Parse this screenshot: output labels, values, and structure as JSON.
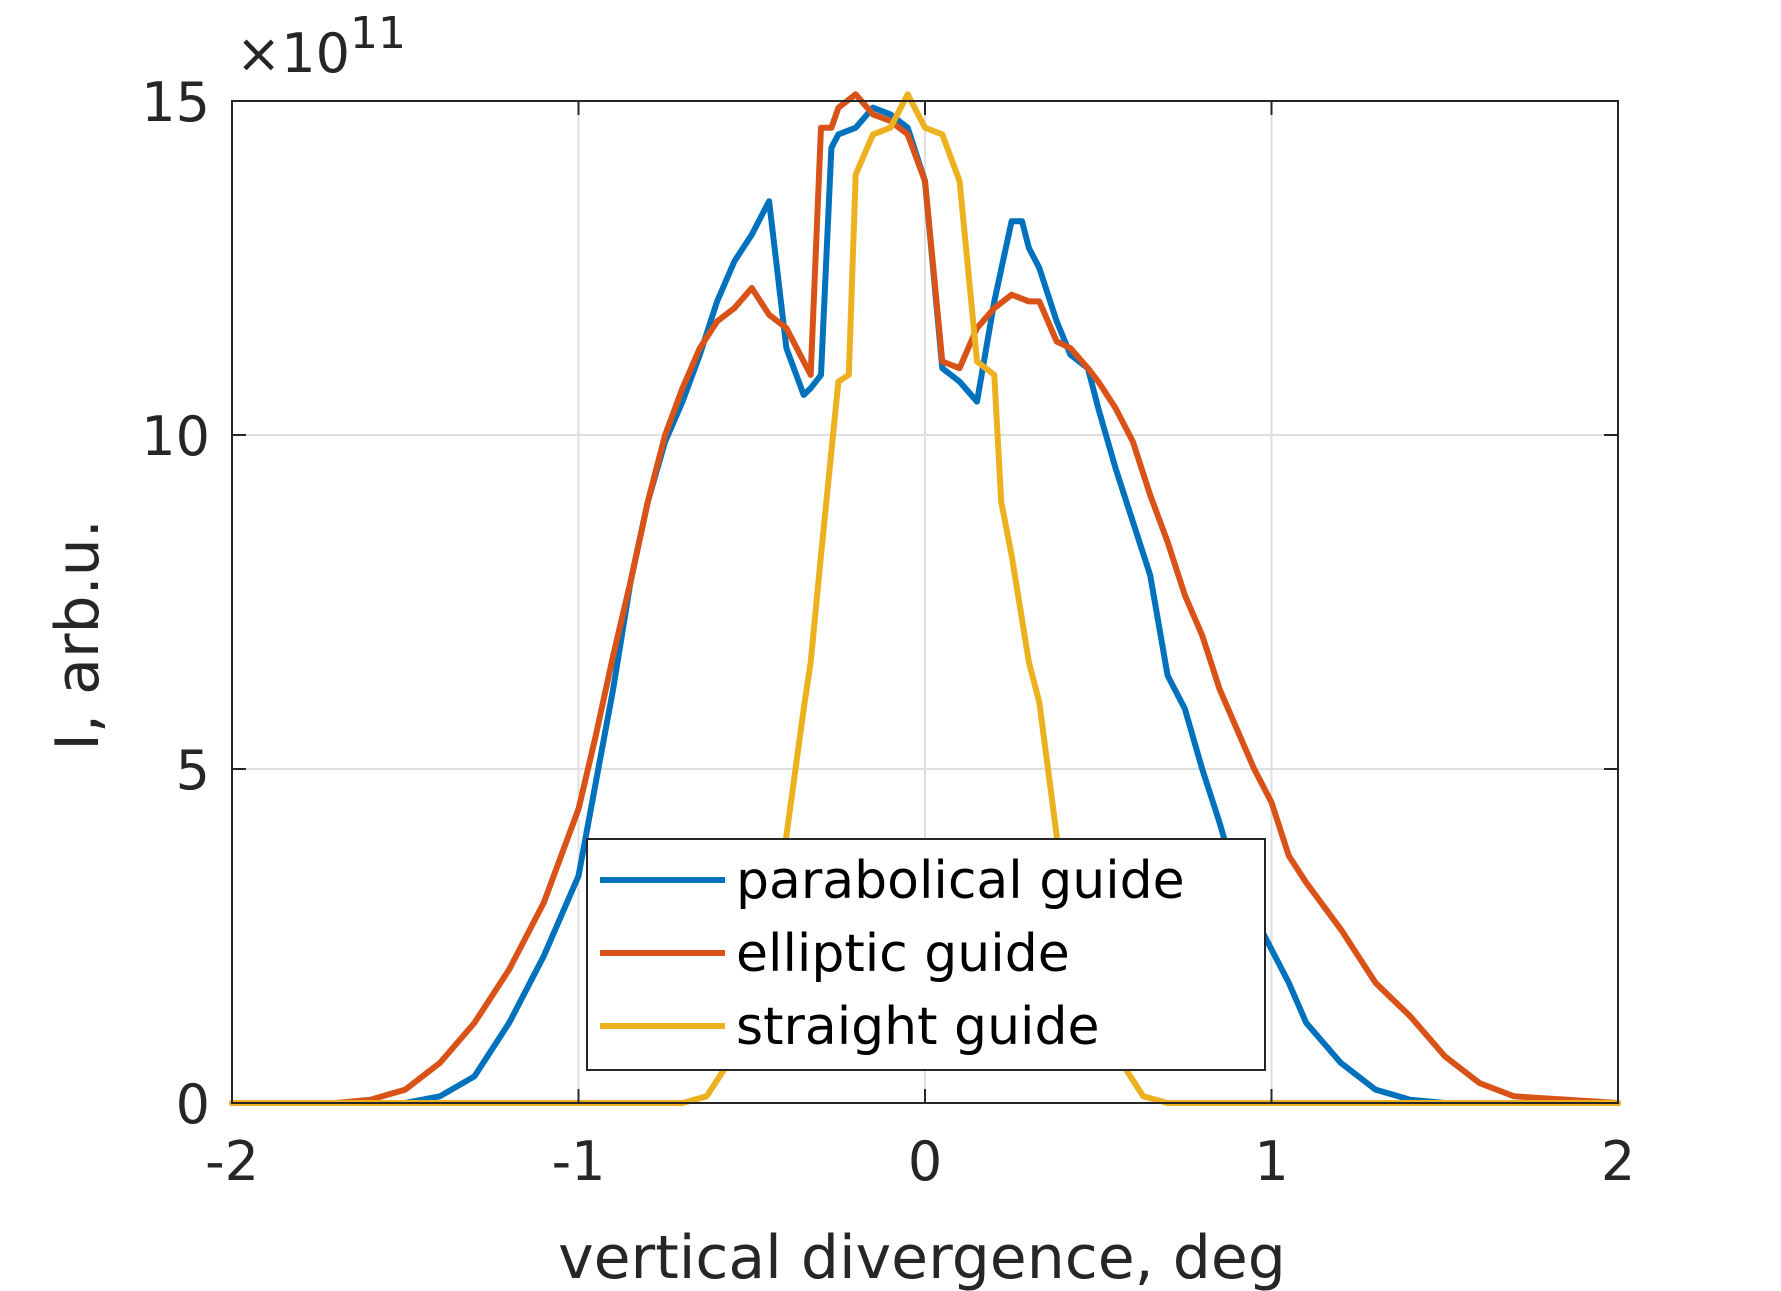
{
  "chart_data": {
    "type": "line",
    "title": "",
    "xlabel": "vertical divergence, deg",
    "ylabel": "I, arb.u.",
    "xlim": [
      -2,
      2
    ],
    "ylim": [
      0,
      15
    ],
    "y_exponent_label": "×10",
    "y_exponent_power": "11",
    "xticks": [
      "-2",
      "-1",
      "0",
      "1",
      "2"
    ],
    "yticks": [
      "0",
      "5",
      "10",
      "15"
    ],
    "grid": true,
    "legend_position": "bottom-center",
    "series": [
      {
        "name": "parabolical guide",
        "color": "#0072BD",
        "x": [
          -2.0,
          -1.5,
          -1.4,
          -1.3,
          -1.2,
          -1.1,
          -1.0,
          -0.95,
          -0.9,
          -0.85,
          -0.8,
          -0.75,
          -0.7,
          -0.65,
          -0.6,
          -0.55,
          -0.5,
          -0.45,
          -0.4,
          -0.35,
          -0.33,
          -0.3,
          -0.27,
          -0.25,
          -0.2,
          -0.15,
          -0.1,
          -0.05,
          0.0,
          0.05,
          0.1,
          0.15,
          0.2,
          0.25,
          0.28,
          0.3,
          0.33,
          0.38,
          0.42,
          0.47,
          0.5,
          0.55,
          0.6,
          0.65,
          0.7,
          0.75,
          0.8,
          0.85,
          0.9,
          0.95,
          1.0,
          1.05,
          1.1,
          1.2,
          1.3,
          1.4,
          1.5,
          1.6,
          2.0
        ],
        "y": [
          0,
          0,
          0.1,
          0.4,
          1.2,
          2.2,
          3.4,
          4.8,
          6.2,
          7.8,
          9.0,
          9.9,
          10.5,
          11.2,
          12.0,
          12.6,
          13.0,
          13.5,
          11.3,
          10.6,
          10.7,
          10.9,
          14.3,
          14.5,
          14.6,
          14.9,
          14.8,
          14.6,
          13.8,
          11.0,
          10.8,
          10.5,
          12.0,
          13.2,
          13.2,
          12.8,
          12.5,
          11.7,
          11.2,
          11.0,
          10.4,
          9.5,
          8.7,
          7.9,
          6.4,
          5.9,
          5.0,
          4.2,
          3.3,
          2.8,
          2.3,
          1.8,
          1.2,
          0.6,
          0.2,
          0.05,
          0,
          0,
          0
        ],
        "x_note": ""
      },
      {
        "name": "elliptic guide",
        "color": "#D95319",
        "x": [
          -2.0,
          -1.7,
          -1.6,
          -1.5,
          -1.4,
          -1.3,
          -1.2,
          -1.1,
          -1.0,
          -0.95,
          -0.9,
          -0.85,
          -0.8,
          -0.75,
          -0.7,
          -0.65,
          -0.6,
          -0.55,
          -0.5,
          -0.45,
          -0.4,
          -0.35,
          -0.33,
          -0.3,
          -0.27,
          -0.25,
          -0.2,
          -0.15,
          -0.1,
          -0.05,
          0.0,
          0.05,
          0.1,
          0.15,
          0.2,
          0.25,
          0.3,
          0.33,
          0.38,
          0.42,
          0.47,
          0.5,
          0.55,
          0.6,
          0.65,
          0.7,
          0.75,
          0.8,
          0.85,
          0.9,
          0.95,
          1.0,
          1.05,
          1.1,
          1.2,
          1.3,
          1.4,
          1.5,
          1.6,
          1.7,
          2.0
        ],
        "y": [
          0,
          0,
          0.05,
          0.2,
          0.6,
          1.2,
          2.0,
          3.0,
          4.4,
          5.5,
          6.7,
          7.8,
          9.0,
          10.0,
          10.7,
          11.3,
          11.7,
          11.9,
          12.2,
          11.8,
          11.6,
          11.1,
          10.9,
          14.6,
          14.6,
          14.9,
          15.1,
          14.8,
          14.7,
          14.5,
          13.8,
          11.1,
          11.0,
          11.6,
          11.9,
          12.1,
          12.0,
          12.0,
          11.4,
          11.3,
          11.0,
          10.8,
          10.4,
          9.9,
          9.1,
          8.4,
          7.6,
          7.0,
          6.2,
          5.6,
          5.0,
          4.5,
          3.7,
          3.3,
          2.6,
          1.8,
          1.3,
          0.7,
          0.3,
          0.1,
          0
        ]
      },
      {
        "name": "straight guide",
        "color": "#EDB120",
        "x": [
          -2.0,
          -0.7,
          -0.63,
          -0.58,
          -0.55,
          -0.5,
          -0.45,
          -0.4,
          -0.35,
          -0.33,
          -0.3,
          -0.25,
          -0.22,
          -0.2,
          -0.15,
          -0.1,
          -0.05,
          0.0,
          0.05,
          0.1,
          0.15,
          0.2,
          0.22,
          0.25,
          0.3,
          0.33,
          0.38,
          0.42,
          0.47,
          0.55,
          0.58,
          0.63,
          0.7,
          2.0
        ],
        "y": [
          0,
          0,
          0.1,
          0.5,
          0.8,
          1.2,
          2.0,
          4.0,
          5.9,
          6.6,
          8.2,
          10.8,
          10.9,
          13.9,
          14.5,
          14.6,
          15.1,
          14.6,
          14.5,
          13.8,
          11.1,
          10.9,
          9.0,
          8.2,
          6.6,
          6.0,
          4.0,
          2.0,
          1.2,
          0.8,
          0.5,
          0.1,
          0,
          0
        ]
      }
    ]
  }
}
